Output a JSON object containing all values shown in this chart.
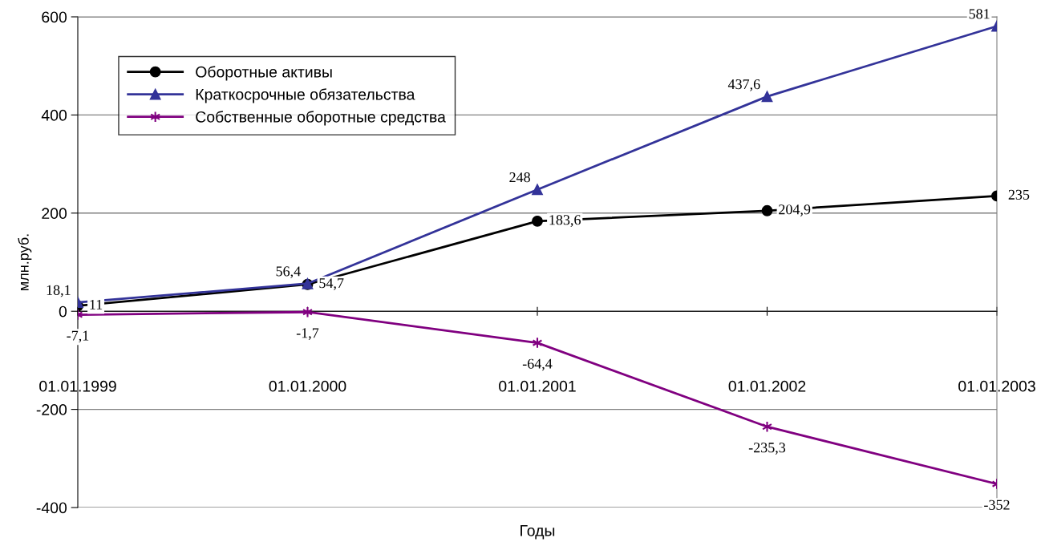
{
  "chart_data": {
    "type": "line",
    "xlabel": "Годы",
    "ylabel": "млн.руб.",
    "categories": [
      "01.01.1999",
      "01.01.2000",
      "01.01.2001",
      "01.01.2002",
      "01.01.2003"
    ],
    "series": [
      {
        "name": "Оборотные активы",
        "color": "#000000",
        "marker": "circle",
        "values": [
          11,
          54.7,
          183.6,
          204.9,
          235
        ],
        "value_labels": [
          "11",
          "54,7",
          "183,6",
          "204,9",
          "235"
        ]
      },
      {
        "name": "Краткосрочные обязательства",
        "color": "#333399",
        "marker": "triangle",
        "values": [
          18.1,
          56.4,
          248,
          437.6,
          581
        ],
        "value_labels": [
          "18,1",
          "56,4",
          "248",
          "437,6",
          "581"
        ]
      },
      {
        "name": "Собственные оборотные средства",
        "color": "#800080",
        "marker": "cross",
        "values": [
          -7.1,
          -1.7,
          -64.4,
          -235.3,
          -352
        ],
        "value_labels": [
          "-7,1",
          "-1,7",
          "-64,4",
          "-235,3",
          "-352"
        ]
      }
    ],
    "ylim": [
      -400,
      600
    ],
    "yticks": [
      -400,
      -200,
      0,
      200,
      400,
      600
    ],
    "grid": "y",
    "legend": "top left",
    "line_style": "solid"
  }
}
